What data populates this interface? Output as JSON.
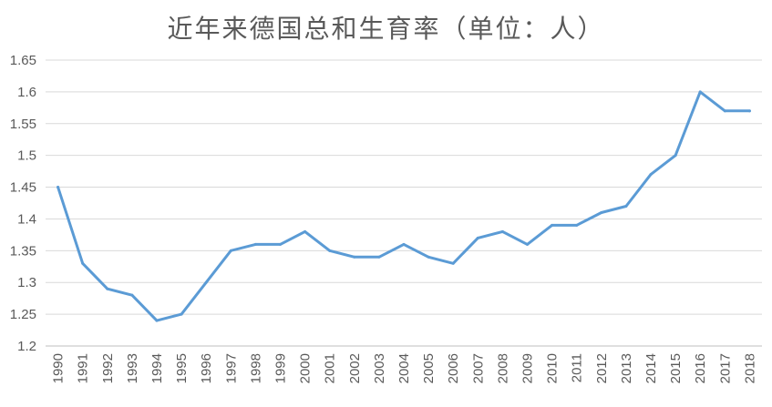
{
  "chart_data": {
    "type": "line",
    "title": "近年来德国总和生育率（单位：人）",
    "xlabel": "",
    "ylabel": "",
    "ylim": [
      1.2,
      1.65
    ],
    "yticks": [
      "1.2",
      "1.25",
      "1.3",
      "1.35",
      "1.4",
      "1.45",
      "1.5",
      "1.55",
      "1.6",
      "1.65"
    ],
    "grid": true,
    "legend": "none",
    "line_color": "#5b9bd5",
    "categories": [
      "1990",
      "1991",
      "1992",
      "1993",
      "1994",
      "1995",
      "1996",
      "1997",
      "1998",
      "1999",
      "2000",
      "2001",
      "2002",
      "2003",
      "2004",
      "2005",
      "2006",
      "2007",
      "2008",
      "2009",
      "2010",
      "2011",
      "2012",
      "2013",
      "2014",
      "2015",
      "2016",
      "2017",
      "2018"
    ],
    "series": [
      {
        "values": [
          1.45,
          1.33,
          1.29,
          1.28,
          1.24,
          1.25,
          1.3,
          1.35,
          1.36,
          1.36,
          1.38,
          1.35,
          1.34,
          1.34,
          1.36,
          1.34,
          1.33,
          1.37,
          1.38,
          1.36,
          1.39,
          1.39,
          1.41,
          1.42,
          1.47,
          1.5,
          1.6,
          1.57,
          1.57
        ]
      }
    ]
  }
}
